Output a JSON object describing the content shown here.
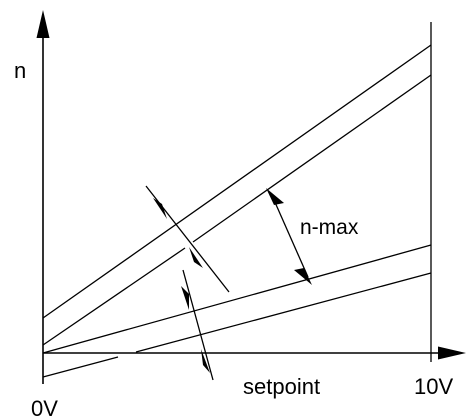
{
  "diagram": {
    "labels": {
      "y_axis": "n",
      "x_axis": "setpoint",
      "x_origin": "0V",
      "x_end": "10V",
      "range": "n-max"
    },
    "colors": {
      "line": "#000000",
      "background": "#ffffff"
    }
  }
}
